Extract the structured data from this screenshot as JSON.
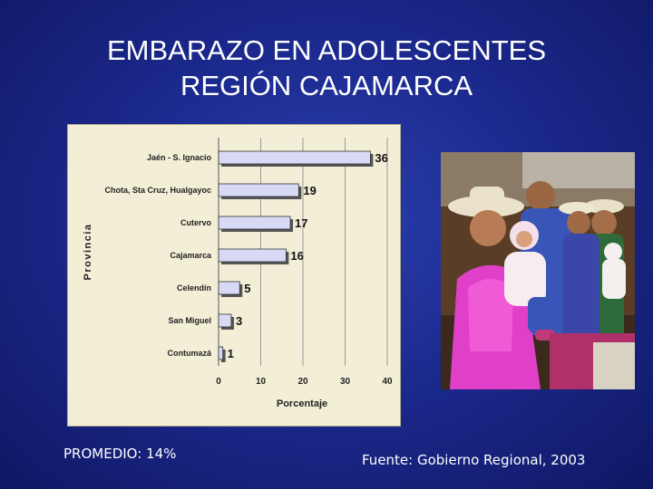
{
  "slide": {
    "title_line1": "EMBARAZO EN ADOLESCENTES",
    "title_line2": "REGIÓN CAJAMARCA",
    "promedio": "PROMEDIO: 14%",
    "fuente": "Fuente: Gobierno Regional, 2003"
  },
  "chart_data": {
    "type": "bar",
    "orientation": "horizontal",
    "title": "",
    "xlabel": "Porcentaje",
    "ylabel": "Provincia",
    "xlim": [
      0,
      40
    ],
    "xticks": [
      0,
      10,
      20,
      30,
      40
    ],
    "categories": [
      "Jaén - S. Ignacio",
      "Chota, Sta Cruz, Hualgayoc",
      "Cutervo",
      "Cajamarca",
      "Celendín",
      "San Miguel",
      "Contumazá"
    ],
    "values": [
      36,
      19,
      17,
      16,
      5,
      3,
      1
    ],
    "grid": true,
    "bar_color": "#d8daf5"
  },
  "photo": {
    "description_icon": "photo-icon"
  }
}
